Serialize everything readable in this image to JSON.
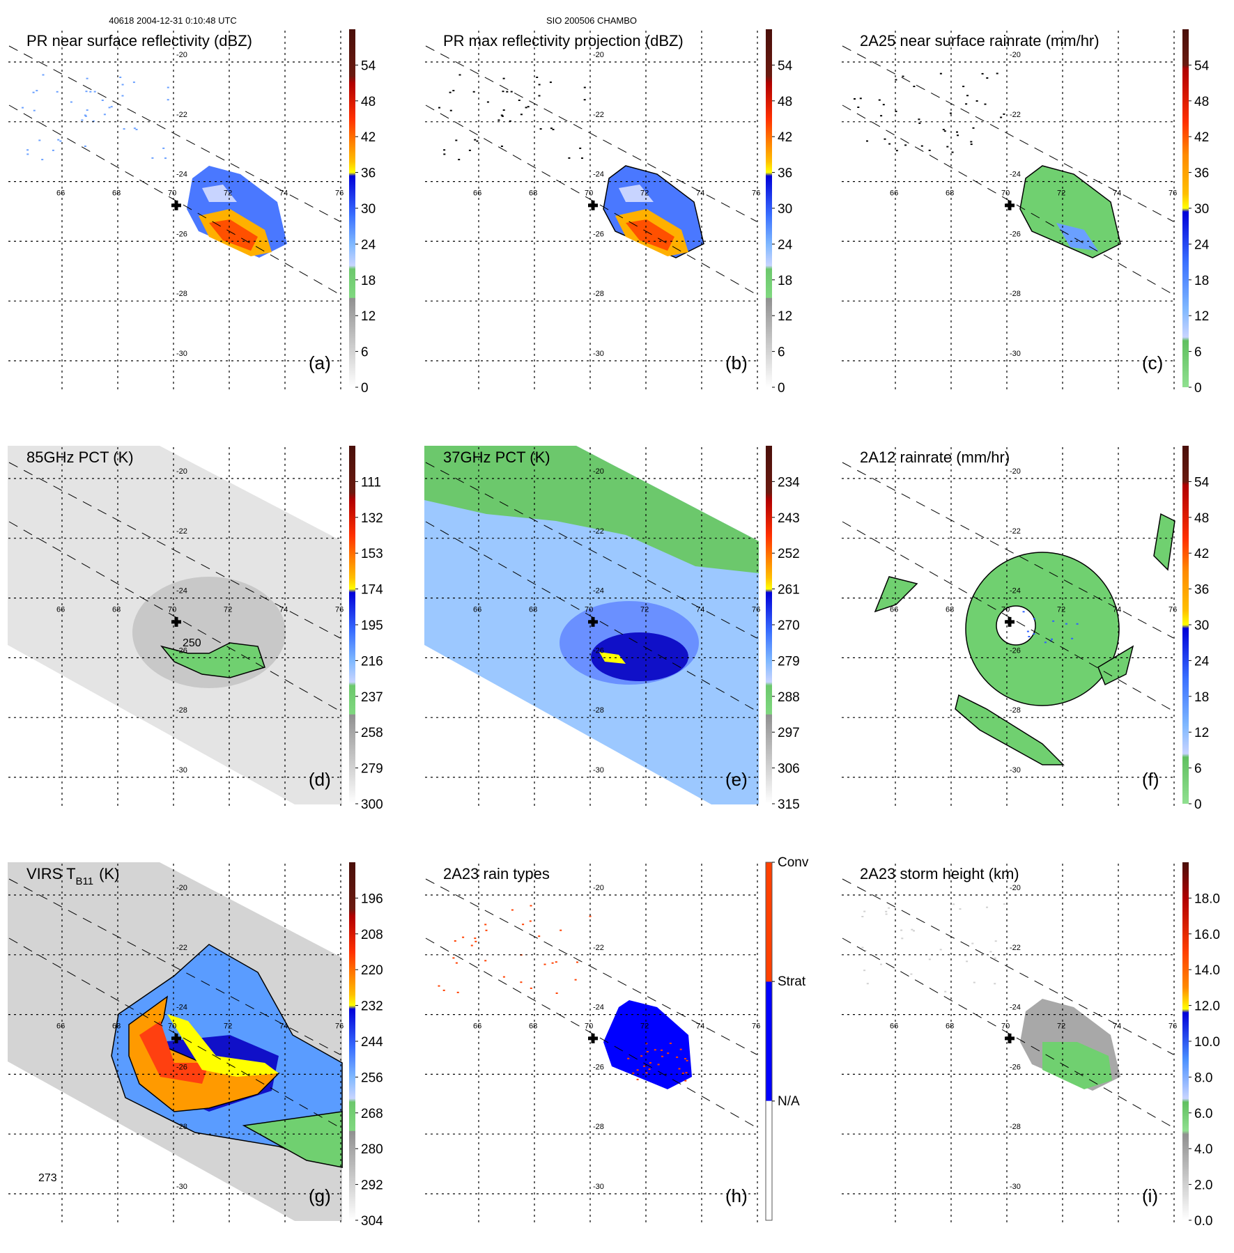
{
  "header": {
    "orbit_time": "40618 2004-12-31 0:10:48 UTC",
    "storm_id": "SIO 200506 CHAMBO"
  },
  "axes": {
    "lon_ticks": [
      "66",
      "68",
      "70",
      "72",
      "74",
      "76"
    ],
    "lat_ticks": [
      "-20",
      "-22",
      "-24",
      "-26",
      "-28",
      "-30"
    ]
  },
  "chart_data": [
    {
      "id": "a",
      "type": "heatmap",
      "title": "PR near surface reflectivity (dBZ)",
      "label": "(a)",
      "colorbar_ticks": [
        "54",
        "48",
        "42",
        "36",
        "30",
        "24",
        "18",
        "12",
        "6",
        "0"
      ],
      "range": [
        0,
        60
      ]
    },
    {
      "id": "b",
      "type": "heatmap",
      "title": "PR max reflectivity projection (dBZ)",
      "label": "(b)",
      "colorbar_ticks": [
        "54",
        "48",
        "42",
        "36",
        "30",
        "24",
        "18",
        "12",
        "6",
        "0"
      ],
      "range": [
        0,
        60
      ]
    },
    {
      "id": "c",
      "type": "heatmap",
      "title": "2A25 near surface rainrate (mm/hr)",
      "label": "(c)",
      "colorbar_ticks": [
        "54",
        "48",
        "42",
        "36",
        "30",
        "24",
        "18",
        "12",
        "6",
        "0"
      ],
      "range": [
        0,
        60
      ]
    },
    {
      "id": "d",
      "type": "heatmap",
      "title": "85GHz PCT (K)",
      "label": "(d)",
      "colorbar_ticks": [
        "111",
        "132",
        "153",
        "174",
        "195",
        "216",
        "237",
        "258",
        "279",
        "300"
      ],
      "range": [
        90,
        300
      ],
      "contour_label": "250"
    },
    {
      "id": "e",
      "type": "heatmap",
      "title": "37GHz PCT (K)",
      "label": "(e)",
      "colorbar_ticks": [
        "234",
        "243",
        "252",
        "261",
        "270",
        "279",
        "288",
        "297",
        "306",
        "315"
      ],
      "range": [
        225,
        315
      ]
    },
    {
      "id": "f",
      "type": "heatmap",
      "title": "2A12 rainrate (mm/hr)",
      "label": "(f)",
      "colorbar_ticks": [
        "54",
        "48",
        "42",
        "36",
        "30",
        "24",
        "18",
        "12",
        "6",
        "0"
      ],
      "range": [
        0,
        60
      ]
    },
    {
      "id": "g",
      "type": "heatmap",
      "title": "VIRS T",
      "title_sub": "B11",
      "title_unit": "(K)",
      "label": "(g)",
      "colorbar_ticks": [
        "196",
        "208",
        "220",
        "232",
        "244",
        "256",
        "268",
        "280",
        "292",
        "304"
      ],
      "range": [
        184,
        304
      ],
      "contour_label": "273"
    },
    {
      "id": "h",
      "type": "heatmap",
      "title": "2A23 rain types",
      "label": "(h)",
      "colorbar_ticks": [
        "Conv",
        "Strat",
        "N/A"
      ]
    },
    {
      "id": "i",
      "type": "heatmap",
      "title": "2A23 storm height (km)",
      "label": "(i)",
      "colorbar_ticks": [
        "18.0",
        "16.0",
        "14.0",
        "12.0",
        "10.0",
        "8.0",
        "6.0",
        "4.0",
        "2.0",
        "0.0"
      ],
      "range": [
        0,
        20
      ]
    }
  ],
  "center_marker": {
    "lon": 70.1,
    "lat": -24.8
  }
}
